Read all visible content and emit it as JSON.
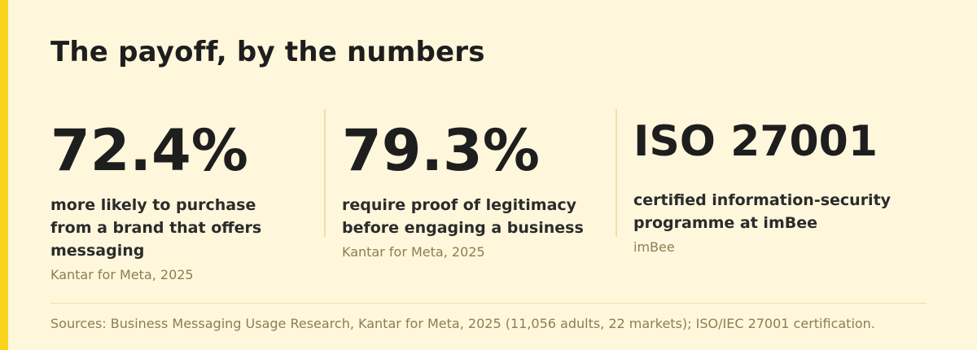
{
  "colors": {
    "background": "#fef7dc",
    "accent": "#f9d21c",
    "text": "#1e1e1e",
    "muted": "#8a7f52",
    "divider": "#ece0aa"
  },
  "title": "The payoff, by the numbers",
  "stats": [
    {
      "value": "72.4%",
      "description": "more likely to purchase from a brand that offers messaging",
      "source": "Kantar for Meta, 2025"
    },
    {
      "value": "79.3%",
      "description": "require proof of legitimacy before engaging a business",
      "source": "Kantar for Meta, 2025"
    },
    {
      "value": "ISO 27001",
      "description": "certified information-security programme at imBee",
      "source": "imBee"
    }
  ],
  "footer": "Sources: Business Messaging Usage Research, Kantar for Meta, 2025 (11,056 adults, 22 markets); ISO/IEC 27001 certification."
}
